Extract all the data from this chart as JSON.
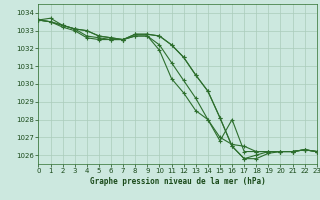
{
  "background_color": "#cce8df",
  "grid_color": "#aaccbb",
  "line_color": "#2d6e2d",
  "text_color": "#1a4a1a",
  "xlabel": "Graphe pression niveau de la mer (hPa)",
  "ylim": [
    1025.5,
    1034.5
  ],
  "xlim": [
    0,
    23
  ],
  "yticks": [
    1026,
    1027,
    1028,
    1029,
    1030,
    1031,
    1032,
    1033,
    1034
  ],
  "xticks": [
    0,
    1,
    2,
    3,
    4,
    5,
    6,
    7,
    8,
    9,
    10,
    11,
    12,
    13,
    14,
    15,
    16,
    17,
    18,
    19,
    20,
    21,
    22,
    23
  ],
  "series": [
    [
      1033.6,
      1033.5,
      1033.3,
      1033.1,
      1033.0,
      1032.7,
      1032.6,
      1032.5,
      1032.8,
      1032.8,
      1032.7,
      1032.2,
      1031.5,
      1030.5,
      1029.6,
      1028.1,
      1026.5,
      1025.8,
      1025.8,
      1026.1,
      1026.2,
      1026.2,
      1026.3,
      1026.2
    ],
    [
      1033.6,
      1033.5,
      1033.3,
      1033.1,
      1033.0,
      1032.7,
      1032.6,
      1032.5,
      1032.8,
      1032.8,
      1032.7,
      1032.2,
      1031.5,
      1030.5,
      1029.6,
      1028.1,
      1026.5,
      1025.8,
      1026.0,
      1026.2,
      1026.2,
      1026.2,
      1026.3,
      1026.2
    ],
    [
      1033.6,
      1033.7,
      1033.3,
      1033.1,
      1032.7,
      1032.6,
      1032.5,
      1032.5,
      1032.7,
      1032.7,
      1032.2,
      1031.2,
      1030.2,
      1029.2,
      1028.0,
      1027.0,
      1026.6,
      1026.5,
      1026.2,
      1026.2,
      1026.2,
      1026.2,
      1026.3,
      1026.2
    ],
    [
      1033.6,
      1033.5,
      1033.2,
      1033.0,
      1032.6,
      1032.5,
      1032.5,
      1032.5,
      1032.7,
      1032.7,
      1031.9,
      1030.3,
      1029.5,
      1028.5,
      1028.0,
      1026.8,
      1028.0,
      1026.2,
      1026.2,
      1026.2,
      1026.2,
      1026.2,
      1026.3,
      1026.2
    ]
  ]
}
